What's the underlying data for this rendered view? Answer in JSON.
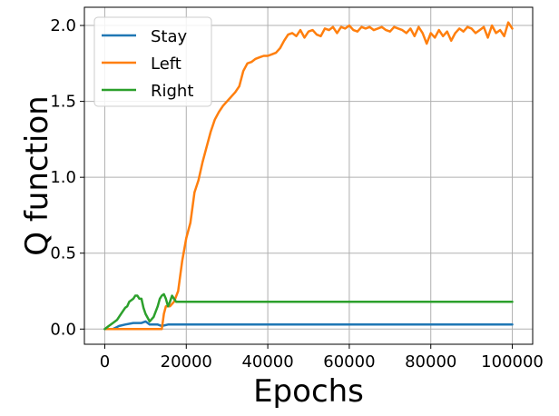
{
  "chart_data": {
    "type": "line",
    "xlabel": "Epochs",
    "ylabel": "Q function",
    "xlim": [
      -5000,
      105000
    ],
    "ylim": [
      -0.1,
      2.12
    ],
    "xticks": [
      0,
      20000,
      40000,
      60000,
      80000,
      100000
    ],
    "xtick_labels": [
      "0",
      "20000",
      "40000",
      "60000",
      "80000",
      "100000"
    ],
    "yticks": [
      0.0,
      0.5,
      1.0,
      1.5,
      2.0
    ],
    "ytick_labels": [
      "0.0",
      "0.5",
      "1.0",
      "1.5",
      "2.0"
    ],
    "grid": true,
    "legend_position": "top-left",
    "series": [
      {
        "name": "Stay",
        "color": "#1f77b4",
        "x": [
          0,
          2000,
          3500,
          5000,
          7000,
          9000,
          10000,
          11000,
          13000,
          14000,
          15500,
          100000
        ],
        "y": [
          0.0,
          0.0,
          0.02,
          0.03,
          0.04,
          0.04,
          0.05,
          0.03,
          0.03,
          0.02,
          0.03,
          0.03
        ]
      },
      {
        "name": "Left",
        "color": "#ff7f0e",
        "x": [
          0,
          10000,
          14000,
          14500,
          15000,
          16000,
          17000,
          18000,
          19000,
          20000,
          21000,
          22000,
          23000,
          24000,
          25000,
          26000,
          27000,
          28000,
          29000,
          30000,
          31000,
          32000,
          33000,
          34000,
          35000,
          36000,
          37000,
          38000,
          39000,
          40000,
          41000,
          42000,
          43000,
          44000,
          45000,
          46000,
          47000,
          48000,
          49000,
          50000,
          51000,
          52000,
          53000,
          54000,
          55000,
          56000,
          57000,
          58000,
          59000,
          60000,
          61000,
          62000,
          63000,
          64000,
          65000,
          66000,
          67000,
          68000,
          69000,
          70000,
          71000,
          72000,
          73000,
          74000,
          75000,
          76000,
          77000,
          78000,
          79000,
          80000,
          81000,
          82000,
          83000,
          84000,
          85000,
          86000,
          87000,
          88000,
          89000,
          90000,
          91000,
          92000,
          93000,
          94000,
          95000,
          96000,
          97000,
          98000,
          99000,
          100000
        ],
        "y": [
          0.0,
          0.0,
          0.0,
          0.1,
          0.15,
          0.15,
          0.18,
          0.25,
          0.45,
          0.6,
          0.7,
          0.9,
          0.98,
          1.1,
          1.2,
          1.3,
          1.38,
          1.43,
          1.47,
          1.5,
          1.53,
          1.56,
          1.6,
          1.7,
          1.75,
          1.76,
          1.78,
          1.79,
          1.8,
          1.8,
          1.81,
          1.82,
          1.85,
          1.9,
          1.94,
          1.95,
          1.93,
          1.97,
          1.92,
          1.96,
          1.97,
          1.94,
          1.93,
          1.98,
          1.97,
          1.99,
          1.95,
          1.99,
          1.98,
          2.0,
          1.97,
          1.96,
          1.99,
          1.98,
          1.99,
          1.97,
          1.98,
          1.99,
          1.97,
          1.96,
          1.99,
          1.98,
          1.97,
          1.95,
          1.98,
          1.93,
          1.99,
          1.95,
          1.88,
          1.95,
          1.92,
          1.97,
          1.93,
          1.96,
          1.9,
          1.95,
          1.98,
          1.96,
          1.99,
          1.98,
          1.95,
          1.97,
          1.99,
          1.92,
          2.0,
          1.95,
          1.97,
          1.93,
          2.02,
          1.98
        ]
      },
      {
        "name": "Right",
        "color": "#2ca02c",
        "x": [
          0,
          1000,
          2000,
          3000,
          4000,
          5000,
          5500,
          6000,
          7000,
          7500,
          8000,
          8500,
          9000,
          9500,
          10000,
          11000,
          12000,
          13000,
          13500,
          14000,
          14500,
          15000,
          15500,
          16000,
          16500,
          17000,
          17500,
          18000,
          100000
        ],
        "y": [
          0.0,
          0.02,
          0.04,
          0.06,
          0.1,
          0.14,
          0.15,
          0.18,
          0.2,
          0.22,
          0.22,
          0.2,
          0.2,
          0.14,
          0.1,
          0.05,
          0.08,
          0.15,
          0.2,
          0.22,
          0.23,
          0.2,
          0.15,
          0.18,
          0.22,
          0.2,
          0.18,
          0.18,
          0.18
        ]
      }
    ]
  }
}
